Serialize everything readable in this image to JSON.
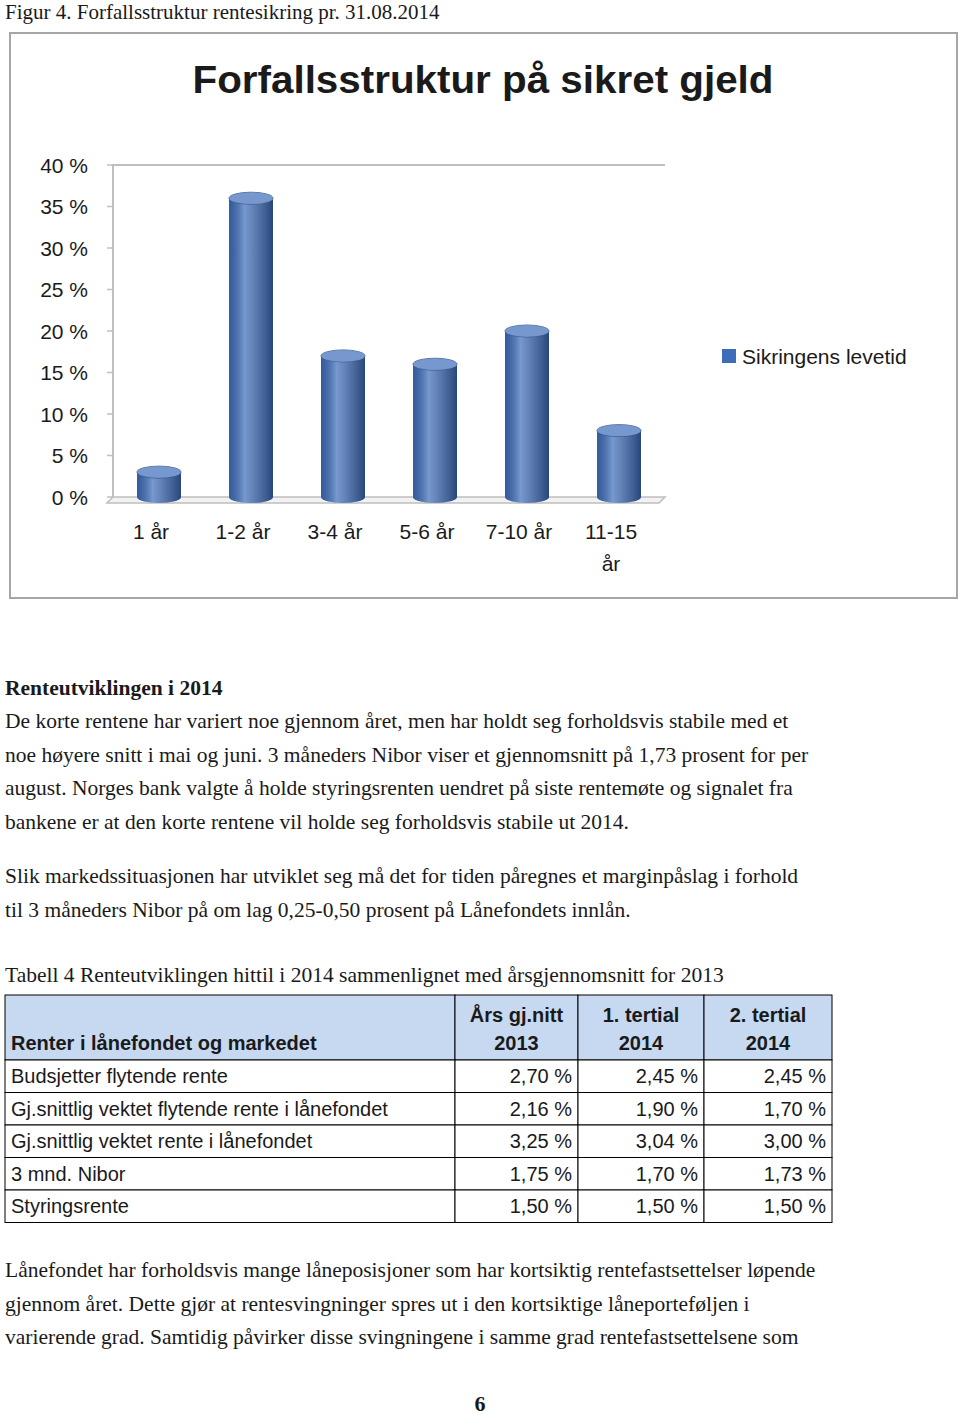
{
  "caption": "Figur 4. Forfallsstruktur rentesikring pr. 31.08.2014",
  "chart_data": {
    "type": "bar",
    "title": "Forfallsstruktur på sikret gjeld",
    "categories": [
      "1 år",
      "1-2 år",
      "3-4 år",
      "5-6 år",
      "7-10 år",
      "11-15 år"
    ],
    "series": [
      {
        "name": "Sikringens levetid",
        "color": "#3d6cba",
        "values": [
          3,
          36,
          17,
          16,
          20,
          8
        ]
      }
    ],
    "ylim": [
      0,
      40
    ],
    "yticks": [
      {
        "value": 0,
        "label": "0 %"
      },
      {
        "value": 5,
        "label": "5 %"
      },
      {
        "value": 10,
        "label": "10 %"
      },
      {
        "value": 15,
        "label": "15 %"
      },
      {
        "value": 20,
        "label": "20 %"
      },
      {
        "value": 25,
        "label": "25 %"
      },
      {
        "value": 30,
        "label": "30 %"
      },
      {
        "value": 35,
        "label": "35 %"
      },
      {
        "value": 40,
        "label": "40 %"
      }
    ],
    "grid": false,
    "legend": "right"
  },
  "section": {
    "heading": "Renteutviklingen i 2014",
    "paragraphs": [
      [
        "De korte rentene har variert noe gjennom året, men har holdt seg forholdsvis stabile med et",
        "noe høyere snitt i mai og juni. 3 måneders Nibor viser et gjennomsnitt på 1,73 prosent for per",
        "august. Norges bank valgte å holde styringsrenten uendret på siste rentemøte og signalet fra",
        "bankene er at den korte rentene vil holde seg forholdsvis stabile ut 2014."
      ],
      [
        "Slik markedssituasjonen har utviklet seg må det for tiden påregnes et marginpåslag i forhold",
        "til 3 måneders Nibor på om lag 0,25-0,50 prosent på Lånefondets innlån."
      ]
    ]
  },
  "table": {
    "caption": "Tabell 4 Renteutviklingen hittil i 2014 sammenlignet med årsgjennomsnitt for 2013",
    "header": [
      [
        "Renter i lånefondet og markedet"
      ],
      [
        "Års gj.nitt",
        "2013"
      ],
      [
        "1. tertial",
        "2014"
      ],
      [
        "2. tertial",
        "2014"
      ]
    ],
    "rows": [
      [
        "Budsjetter flytende rente",
        "2,70 %",
        "2,45 %",
        "2,45 %"
      ],
      [
        "Gj.snittlig vektet flytende rente i lånefondet",
        "2,16 %",
        "1,90 %",
        "1,70 %"
      ],
      [
        "Gj.snittlig vektet rente i lånefondet",
        "3,25 %",
        "3,04 %",
        "3,00 %"
      ],
      [
        "3 mnd. Nibor",
        "1,75 %",
        "1,70 %",
        "1,73 %"
      ],
      [
        "Styringsrente",
        "1,50 %",
        "1,50 %",
        "1,50 %"
      ]
    ]
  },
  "closing": [
    "Lånefondet har forholdsvis mange låneposisjoner som har kortsiktig rentefastsettelser løpende",
    "gjennom året. Dette gjør at rentesvingninger spres ut i den kortsiktige låneporteføljen i",
    "varierende grad. Samtidig påvirker disse svingningene i samme grad rentefastsettelsene som"
  ],
  "page_number": "6"
}
